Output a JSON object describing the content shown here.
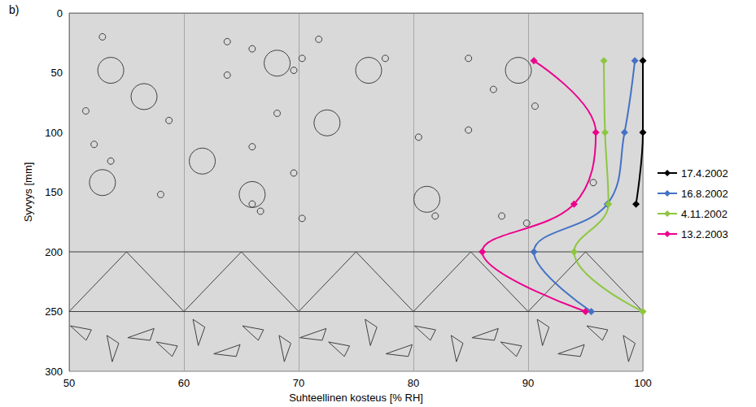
{
  "chart_data": {
    "type": "line",
    "title": "b)",
    "x_label": "Suhteellinen kosteus [% RH]",
    "y_label": "Syvyys [mm]",
    "xlim": [
      50,
      100
    ],
    "xticks": [
      50,
      60,
      70,
      80,
      90,
      100
    ],
    "ylim": [
      300,
      0
    ],
    "yticks": [
      0,
      50,
      100,
      150,
      200,
      250,
      300
    ],
    "grid": "x",
    "legend": "right",
    "marker": "diamond",
    "line_style": "solid",
    "layer_boundaries": [
      200,
      250
    ],
    "series": [
      {
        "name": "17.4.2002",
        "color": "#000000",
        "x": [
          100,
          100,
          99.4
        ],
        "y": [
          40,
          100,
          160
        ]
      },
      {
        "name": "16.8.2002",
        "color": "#4472c4",
        "x": [
          99.3,
          98.4,
          96.9,
          90.5,
          95.5
        ],
        "y": [
          40,
          100,
          160,
          200,
          250
        ]
      },
      {
        "name": "4.11.2002",
        "color": "#8dc63f",
        "x": [
          96.6,
          96.7,
          97,
          94,
          100
        ],
        "y": [
          40,
          100,
          160,
          200,
          250
        ]
      },
      {
        "name": "13.2.2003",
        "color": "#ec008c",
        "x": [
          90.5,
          95.9,
          94,
          86,
          95
        ],
        "y": [
          40,
          100,
          160,
          200,
          250
        ]
      }
    ]
  }
}
